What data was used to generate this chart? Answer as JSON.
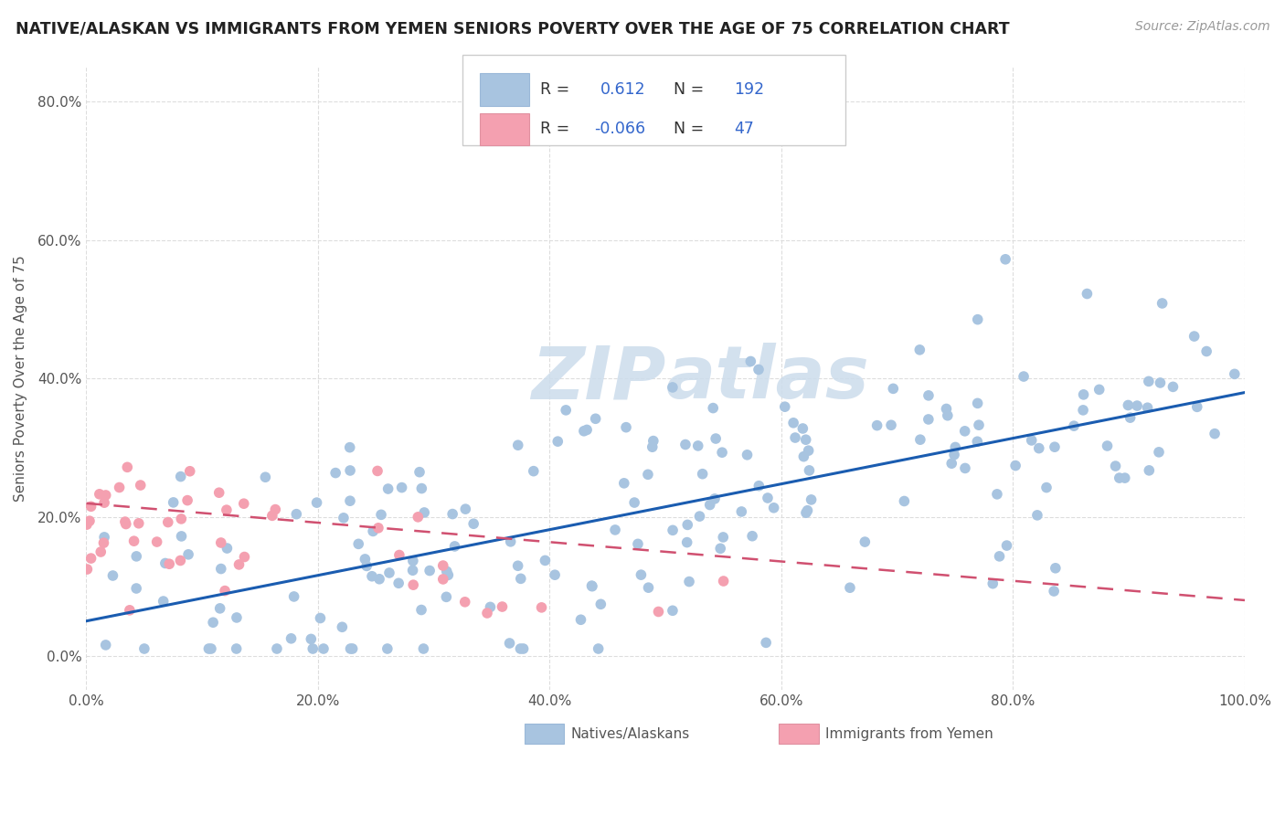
{
  "title": "NATIVE/ALASKAN VS IMMIGRANTS FROM YEMEN SENIORS POVERTY OVER THE AGE OF 75 CORRELATION CHART",
  "source_text": "Source: ZipAtlas.com",
  "xlabel": "",
  "ylabel": "Seniors Poverty Over the Age of 75",
  "xlim": [
    0,
    1.0
  ],
  "ylim": [
    -0.05,
    0.85
  ],
  "xticks": [
    0.0,
    0.2,
    0.4,
    0.6,
    0.8,
    1.0
  ],
  "xticklabels": [
    "0.0%",
    "20.0%",
    "40.0%",
    "60.0%",
    "80.0%",
    "100.0%"
  ],
  "yticks": [
    0.0,
    0.2,
    0.4,
    0.6,
    0.8
  ],
  "yticklabels": [
    "0.0%",
    "20.0%",
    "40.0%",
    "60.0%",
    "80.0%"
  ],
  "blue_R": 0.612,
  "blue_N": 192,
  "pink_R": -0.066,
  "pink_N": 47,
  "blue_color": "#a8c4e0",
  "pink_color": "#f4a0b0",
  "blue_line_color": "#1a5cb0",
  "pink_line_color": "#d05070",
  "watermark_color": "#ccdcec",
  "grid_color": "#dddddd",
  "background_color": "#ffffff",
  "legend_label_blue": "Natives/Alaskans",
  "legend_label_pink": "Immigrants from Yemen",
  "blue_trend_y0": 0.05,
  "blue_trend_y1": 0.38,
  "pink_trend_y0": 0.22,
  "pink_trend_y1": 0.08
}
